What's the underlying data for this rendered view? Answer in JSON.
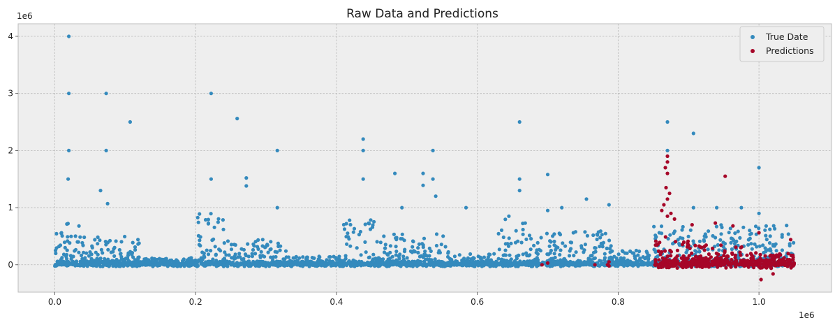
{
  "chart_data": {
    "type": "scatter",
    "title": "Raw Data and Predictions",
    "xlabel": "",
    "ylabel": "",
    "x_offset_label": "1e6",
    "y_offset_label": "1e6",
    "xlim": [
      -52000,
      1103000
    ],
    "ylim": [
      -480000,
      4220000
    ],
    "x_ticks": [
      0,
      200000,
      400000,
      600000,
      800000,
      1000000
    ],
    "x_tick_labels": [
      "0.0",
      "0.2",
      "0.4",
      "0.6",
      "0.8",
      "1.0"
    ],
    "y_ticks": [
      0,
      1000000,
      2000000,
      3000000,
      4000000
    ],
    "y_tick_labels": [
      "0",
      "1",
      "2",
      "3",
      "4"
    ],
    "grid": true,
    "legend_position": "top-right",
    "series": [
      {
        "name": "True Date",
        "color": "#348abd",
        "points": [
          [
            20000,
            4000000
          ],
          [
            20000,
            3000000
          ],
          [
            73000,
            3000000
          ],
          [
            222000,
            3000000
          ],
          [
            259000,
            2560000
          ],
          [
            107000,
            2500000
          ],
          [
            660000,
            2500000
          ],
          [
            870000,
            2500000
          ],
          [
            907000,
            2300000
          ],
          [
            438000,
            2200000
          ],
          [
            20000,
            2000000
          ],
          [
            73000,
            2000000
          ],
          [
            316000,
            2000000
          ],
          [
            438000,
            2000000
          ],
          [
            537000,
            2000000
          ],
          [
            870000,
            2000000
          ],
          [
            1000000,
            1700000
          ],
          [
            483000,
            1600000
          ],
          [
            523000,
            1600000
          ],
          [
            700000,
            1580000
          ],
          [
            19000,
            1500000
          ],
          [
            222000,
            1500000
          ],
          [
            272000,
            1520000
          ],
          [
            438000,
            1500000
          ],
          [
            537000,
            1500000
          ],
          [
            660000,
            1500000
          ],
          [
            523000,
            1390000
          ],
          [
            272000,
            1380000
          ],
          [
            65000,
            1300000
          ],
          [
            660000,
            1300000
          ],
          [
            541000,
            1200000
          ],
          [
            755000,
            1150000
          ],
          [
            75000,
            1070000
          ],
          [
            787000,
            1050000
          ],
          [
            493000,
            1000000
          ],
          [
            584000,
            1000000
          ],
          [
            316000,
            1000000
          ],
          [
            720000,
            1000000
          ],
          [
            907000,
            1000000
          ],
          [
            940000,
            1000000
          ],
          [
            975000,
            1000000
          ],
          [
            700000,
            950000
          ],
          [
            1000000,
            900000
          ]
        ],
        "clusters": [
          {
            "x": [
              0,
              45000
            ],
            "ymax": 750000
          },
          {
            "x": [
              45000,
              120000
            ],
            "ymax": 500000
          },
          {
            "x": [
              120000,
              200000
            ],
            "ymax": 120000
          },
          {
            "x": [
              200000,
              240000
            ],
            "ymax": 900000
          },
          {
            "x": [
              240000,
              330000
            ],
            "ymax": 450000
          },
          {
            "x": [
              330000,
              410000
            ],
            "ymax": 150000
          },
          {
            "x": [
              410000,
              460000
            ],
            "ymax": 850000
          },
          {
            "x": [
              460000,
              560000
            ],
            "ymax": 550000
          },
          {
            "x": [
              560000,
              630000
            ],
            "ymax": 200000
          },
          {
            "x": [
              630000,
              680000
            ],
            "ymax": 850000
          },
          {
            "x": [
              680000,
              790000
            ],
            "ymax": 600000
          },
          {
            "x": [
              790000,
              850000
            ],
            "ymax": 250000
          },
          {
            "x": [
              850000,
              1050000
            ],
            "ymax": 700000
          }
        ]
      },
      {
        "name": "Predictions",
        "color": "#a60628",
        "points": [
          [
            952000,
            1550000
          ],
          [
            870000,
            1900000
          ],
          [
            870000,
            1800000
          ],
          [
            867000,
            1700000
          ],
          [
            870000,
            1600000
          ],
          [
            868000,
            1350000
          ],
          [
            873000,
            1250000
          ],
          [
            870000,
            1150000
          ],
          [
            865000,
            1050000
          ],
          [
            862000,
            950000
          ],
          [
            875000,
            900000
          ],
          [
            870000,
            850000
          ],
          [
            880000,
            800000
          ],
          [
            905000,
            700000
          ],
          [
            938000,
            730000
          ],
          [
            963000,
            680000
          ],
          [
            1000000,
            560000
          ],
          [
            1045000,
            440000
          ],
          [
            1003000,
            -260000
          ],
          [
            1020000,
            -160000
          ],
          [
            692000,
            0
          ],
          [
            700000,
            30000
          ],
          [
            767000,
            0
          ],
          [
            787000,
            50000
          ],
          [
            785000,
            0
          ],
          [
            787000,
            -20000
          ]
        ],
        "clusters": [
          {
            "x": [
              852000,
              900000
            ],
            "ymax": 550000
          },
          {
            "x": [
              900000,
              1000000
            ],
            "ymax": 350000
          },
          {
            "x": [
              1000000,
              1050000
            ],
            "ymax": 200000
          }
        ]
      }
    ]
  }
}
